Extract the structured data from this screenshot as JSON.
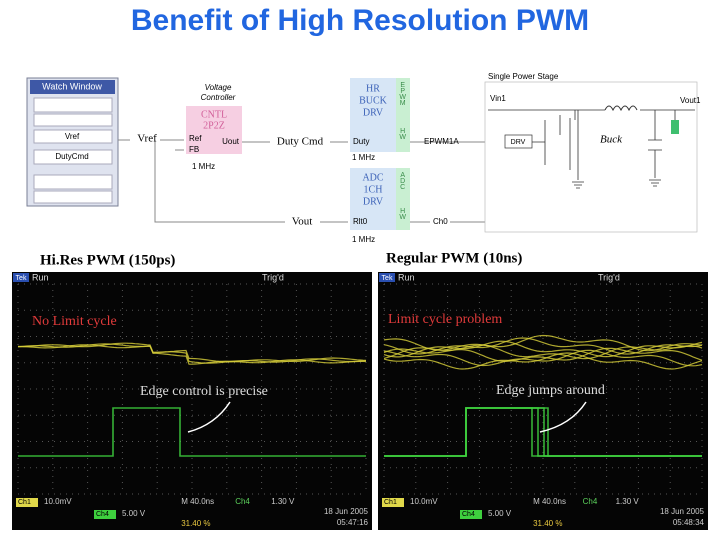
{
  "title": "Benefit of High Resolution PWM",
  "diagram": {
    "watch_window": {
      "title": "Watch Window",
      "items": [
        "Vref",
        "DutyCmd"
      ]
    },
    "controller": {
      "label": [
        "Voltage",
        "Controller"
      ],
      "block": [
        "CNTL",
        "2P2Z"
      ],
      "ref": "Ref",
      "fb": "FB",
      "uout": "Uout",
      "rate": "1 MHz"
    },
    "signals": {
      "vref": "Vref",
      "duty_cmd": "Duty Cmd",
      "vout": "Vout"
    },
    "hr_buck": {
      "label": [
        "HR",
        "BUCK",
        "DRV"
      ],
      "side": "EPWM",
      "input": "Duty",
      "hw": "HW",
      "rate": "1 MHz"
    },
    "adc": {
      "label": [
        "ADC",
        "1CH",
        "DRV"
      ],
      "side": "ADC",
      "output": "Rlt0",
      "hw": "HW",
      "channel": "Ch0",
      "rate": "1 MHz"
    },
    "power_stage": {
      "title": "Single Power Stage",
      "vin": "Vin1",
      "vout": "Vout1",
      "pwm": "EPWM1A",
      "drv": "DRV",
      "buck": "Buck"
    }
  },
  "scopes": [
    {
      "heading": "Hi.Res PWM (150ps)",
      "brand": "Tek",
      "status": "Run",
      "trig": "Trig'd",
      "note_top": "No Limit cycle",
      "note_edge": "Edge control is precise",
      "ch1": "Ch1",
      "ch1_scale": "10.0mV",
      "timebase": "M 40.0ns",
      "ch4": "Ch4",
      "trig_level": "1.30 V",
      "ch4_scale": "5.00 V",
      "duty": "31.40 %",
      "date": "18 Jun 2005",
      "time": "05:47:16"
    },
    {
      "heading": "Regular PWM (10ns)",
      "brand": "Tek",
      "status": "Run",
      "trig": "Trig'd",
      "note_top": "Limit cycle problem",
      "note_edge": "Edge jumps around",
      "ch1": "Ch1",
      "ch1_scale": "10.0mV",
      "timebase": "M 40.0ns",
      "ch4": "Ch4",
      "trig_level": "1.30 V",
      "ch4_scale": "5.00 V",
      "duty": "31.40 %",
      "date": "18 Jun 2005",
      "time": "05:48:34"
    }
  ]
}
